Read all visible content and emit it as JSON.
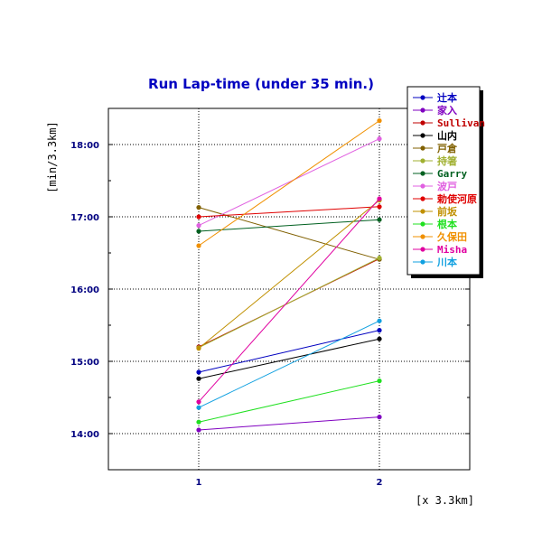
{
  "chart_data": {
    "type": "line",
    "title": "Run Lap-time (under 35 min.)",
    "xlabel": "[x 3.3km]",
    "ylabel": "[min/3.3km]",
    "x": [
      1,
      2
    ],
    "x_ticks": [
      "1",
      "2"
    ],
    "xlim": [
      0.5,
      2.5
    ],
    "y_ticks": [
      "14:00",
      "15:00",
      "16:00",
      "17:00",
      "18:00"
    ],
    "y_tick_values": [
      14,
      15,
      16,
      17,
      18
    ],
    "ylim": [
      13.5,
      18.5
    ],
    "grid": true,
    "legend_position": "top-right",
    "series": [
      {
        "name": "辻本",
        "color": "#0000c0",
        "values": [
          14.85,
          15.43
        ]
      },
      {
        "name": "家入",
        "color": "#8000c0",
        "values": [
          14.05,
          14.23
        ]
      },
      {
        "name": "Sullivan",
        "color": "#c00000",
        "values": [
          15.2,
          16.42
        ]
      },
      {
        "name": "山内",
        "color": "#000000",
        "values": [
          14.76,
          15.31
        ]
      },
      {
        "name": "戸倉",
        "color": "#806000",
        "values": [
          17.13,
          16.41
        ]
      },
      {
        "name": "持箸",
        "color": "#a0b030",
        "values": [
          15.19,
          16.43
        ]
      },
      {
        "name": "Garry",
        "color": "#006020",
        "values": [
          16.8,
          16.96
        ]
      },
      {
        "name": "波戸",
        "color": "#e060e0",
        "values": [
          16.88,
          18.08
        ]
      },
      {
        "name": "勅使河原",
        "color": "#e00000",
        "values": [
          17.0,
          17.14
        ]
      },
      {
        "name": "前坂",
        "color": "#c09000",
        "values": [
          15.18,
          17.23
        ]
      },
      {
        "name": "根本",
        "color": "#20e020",
        "values": [
          14.16,
          14.73
        ]
      },
      {
        "name": "久保田",
        "color": "#f09000",
        "values": [
          16.6,
          18.33
        ]
      },
      {
        "name": "Misha",
        "color": "#e000a0",
        "values": [
          14.44,
          17.25
        ]
      },
      {
        "name": "川本",
        "color": "#10a0e0",
        "values": [
          14.36,
          15.56
        ]
      }
    ]
  }
}
